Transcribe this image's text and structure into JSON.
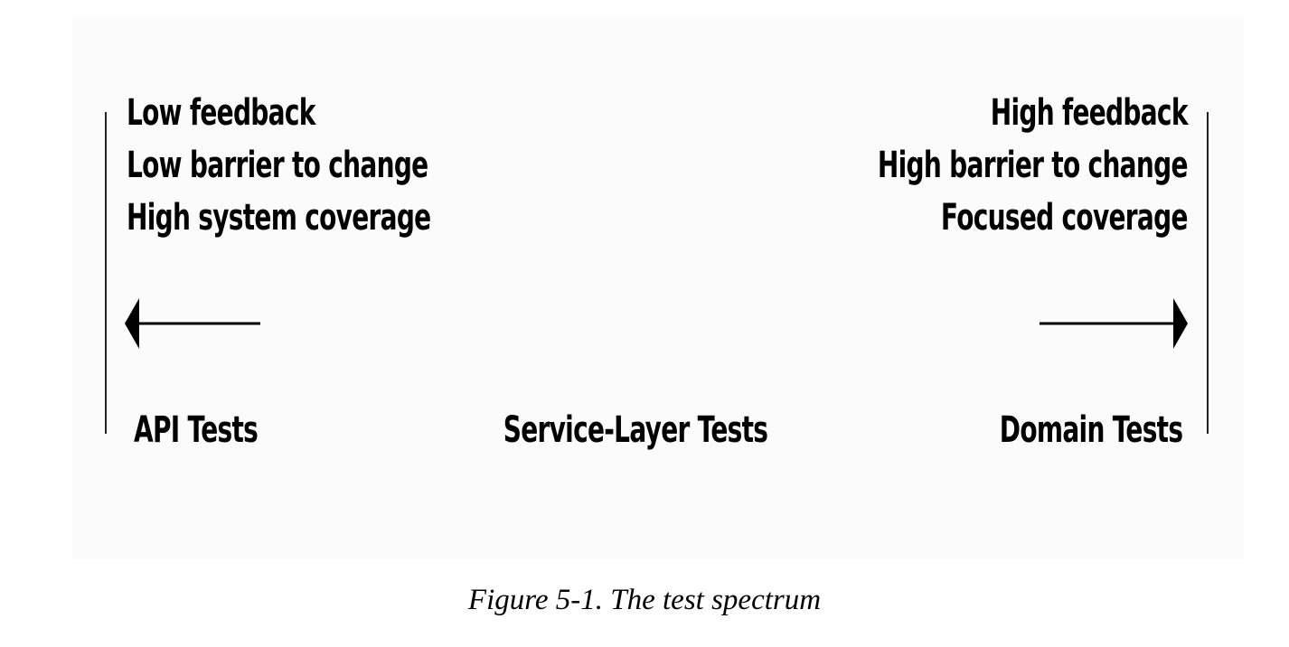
{
  "diagram": {
    "left_attributes": [
      "Low feedback",
      "Low barrier to change",
      "High system coverage"
    ],
    "right_attributes": [
      "High feedback",
      "High barrier to change",
      "Focused coverage"
    ],
    "spectrum_labels": {
      "left": "API Tests",
      "center": "Service-Layer Tests",
      "right": "Domain Tests"
    },
    "arrows": {
      "left_icon": "arrow-left-icon",
      "right_icon": "arrow-right-icon"
    },
    "colors": {
      "panel_background": "#fbfbfb",
      "ink": "#000000"
    }
  },
  "caption": "Figure 5-1. The test spectrum"
}
